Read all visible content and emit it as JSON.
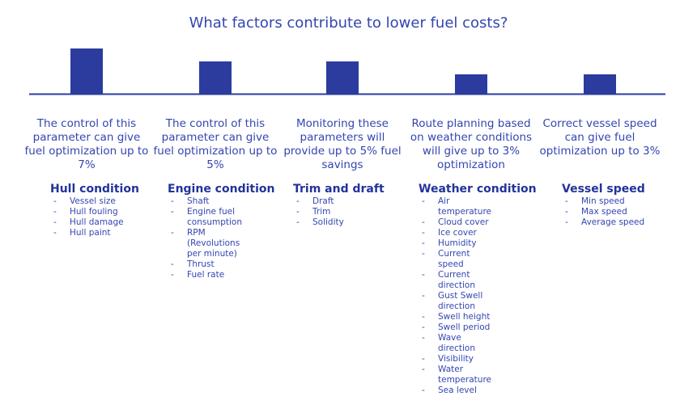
{
  "title": "What factors contribute to lower fuel costs?",
  "chart_data": {
    "type": "bar",
    "values": [
      7,
      5,
      5,
      3,
      3
    ],
    "ylim": [
      0,
      7
    ],
    "color": "#2b3c9e"
  },
  "columns": [
    {
      "description": "The control of this parameter can give fuel optimization up to 7%",
      "heading": "Hull condition",
      "items": [
        "Vessel size",
        "Hull fouling",
        "Hull damage",
        "Hull paint"
      ]
    },
    {
      "description": "The control of this parameter can give fuel optimization up to 5%",
      "heading": "Engine condition",
      "items": [
        "Shaft",
        "Engine fuel consumption",
        "RPM (Revolutions per minute)",
        "Thrust",
        "Fuel rate"
      ]
    },
    {
      "description": "Monitoring these parameters will provide up to 5% fuel savings",
      "heading": "Trim and draft",
      "items": [
        "Draft",
        "Trim",
        "Solidity"
      ]
    },
    {
      "description": "Route planning based on weather conditions will give up to 3% optimization",
      "heading": "Weather condition",
      "items": [
        "Air temperature",
        "Cloud cover",
        "Ice cover",
        "Humidity",
        "Current speed",
        "Current direction",
        "Gust Swell direction",
        "Swell height",
        "Swell period",
        "Wave direction",
        "Visibility",
        "Water temperature",
        "Sea level"
      ]
    },
    {
      "description": "Correct vessel speed can give fuel optimization up to 3%",
      "heading": "Vessel speed",
      "items": [
        "Min speed",
        "Max speed",
        "Average speed"
      ]
    }
  ]
}
